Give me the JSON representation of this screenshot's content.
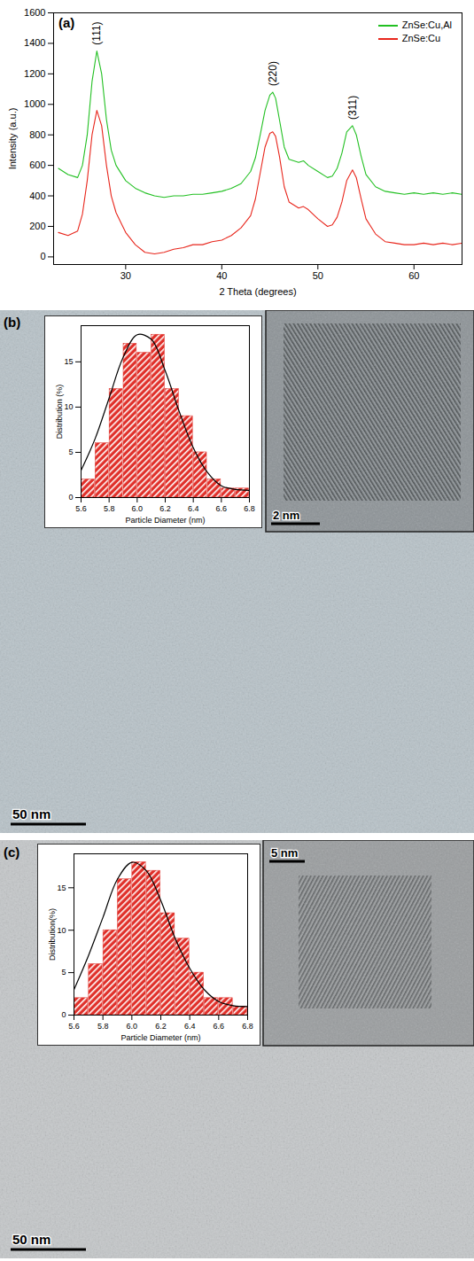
{
  "chart_data": [
    {
      "type": "line",
      "panel_label": "(a)",
      "x_label": "2 Theta (degrees)",
      "y_label": "Intensity (a.u.)",
      "x": [
        23,
        24,
        25,
        25.5,
        26,
        26.5,
        27,
        27.5,
        28,
        28.5,
        29,
        30,
        31,
        32,
        33,
        34,
        35,
        36,
        37,
        38,
        39,
        40,
        41,
        42,
        43,
        43.5,
        44,
        44.5,
        45,
        45.3,
        45.6,
        46,
        46.5,
        47,
        48,
        48.5,
        49,
        50,
        51,
        51.5,
        52,
        52.5,
        53,
        53.6,
        54,
        54.5,
        55,
        56,
        57,
        58,
        59,
        60,
        61,
        62,
        63,
        64,
        65
      ],
      "series": [
        {
          "name": "ZnSe:Cu,Al",
          "color": "#22c022",
          "values": [
            580,
            540,
            520,
            600,
            800,
            1150,
            1350,
            1200,
            900,
            700,
            600,
            500,
            450,
            420,
            400,
            390,
            400,
            400,
            410,
            410,
            420,
            430,
            450,
            480,
            560,
            650,
            800,
            960,
            1060,
            1080,
            1040,
            900,
            720,
            640,
            620,
            630,
            600,
            560,
            520,
            530,
            580,
            680,
            820,
            860,
            800,
            660,
            540,
            460,
            430,
            420,
            410,
            420,
            410,
            420,
            410,
            420,
            410
          ]
        },
        {
          "name": "ZnSe:Cu",
          "color": "#e8261c",
          "values": [
            160,
            140,
            170,
            280,
            500,
            800,
            960,
            860,
            600,
            400,
            290,
            160,
            80,
            30,
            20,
            30,
            50,
            60,
            80,
            80,
            100,
            110,
            140,
            190,
            270,
            380,
            550,
            720,
            810,
            820,
            790,
            660,
            460,
            360,
            320,
            330,
            310,
            250,
            200,
            210,
            260,
            360,
            500,
            570,
            520,
            380,
            250,
            150,
            100,
            90,
            80,
            80,
            90,
            80,
            90,
            80,
            90
          ]
        }
      ],
      "annotations": [
        {
          "text": "(111)",
          "x": 27,
          "y": 1390
        },
        {
          "text": "(220)",
          "x": 45.3,
          "y": 1120
        },
        {
          "text": "(311)",
          "x": 53.6,
          "y": 900
        }
      ],
      "xlim": [
        22.5,
        65
      ],
      "xticks": [
        30,
        40,
        50,
        60
      ],
      "ylim": [
        -50,
        1600
      ],
      "yticks": [
        0,
        200,
        400,
        600,
        800,
        1000,
        1200,
        1400,
        1600
      ],
      "legend": "top-right",
      "grid": false
    },
    {
      "type": "histogram",
      "x_label": "Particle Diameter (nm)",
      "y_label": "Distribution (%)",
      "bins": [
        5.6,
        5.7,
        5.8,
        5.9,
        6.0,
        6.1,
        6.2,
        6.3,
        6.4,
        6.5,
        6.6,
        6.7,
        6.8
      ],
      "values": [
        2,
        6,
        12,
        17,
        16,
        18,
        12,
        9,
        5,
        2,
        1,
        1
      ],
      "color": "#e0302a",
      "fit_curve": {
        "x": [
          5.6,
          5.7,
          5.8,
          5.9,
          6.0,
          6.1,
          6.2,
          6.3,
          6.4,
          6.5,
          6.6,
          6.7,
          6.8
        ],
        "values": [
          3,
          6.5,
          11,
          15.5,
          18,
          17.5,
          14,
          9.5,
          5.5,
          2.8,
          1.3,
          0.9,
          0.8
        ]
      },
      "xlim": [
        5.6,
        6.8
      ],
      "xticks": [
        5.6,
        5.8,
        {
          "value": 6,
          "label": "6.0"
        },
        6.2,
        6.4,
        6.6,
        6.8
      ],
      "ylim": [
        0,
        19
      ],
      "yticks": [
        0,
        5,
        10,
        15
      ],
      "grid": false
    },
    {
      "type": "histogram",
      "x_label": "Particle Diameter (nm)",
      "y_label": "Distribution(%)",
      "bins": [
        5.6,
        5.7,
        5.8,
        5.9,
        6.0,
        6.1,
        6.2,
        6.3,
        6.4,
        6.5,
        6.6,
        6.7,
        6.8
      ],
      "values": [
        2,
        6,
        10,
        16,
        18,
        17,
        12,
        9,
        5,
        2,
        2,
        1
      ],
      "color": "#e0302a",
      "fit_curve": {
        "x": [
          5.6,
          5.7,
          5.8,
          5.9,
          6.0,
          6.1,
          6.2,
          6.3,
          6.4,
          6.5,
          6.6,
          6.7,
          6.8
        ],
        "values": [
          3,
          7,
          11.5,
          16,
          18,
          17,
          13.5,
          9,
          5.5,
          3,
          1.6,
          1.1,
          1
        ]
      },
      "xlim": [
        5.6,
        6.8
      ],
      "xticks": [
        5.6,
        5.8,
        {
          "value": 6,
          "label": "6.0"
        },
        6.2,
        6.4,
        6.6,
        6.8
      ],
      "ylim": [
        0,
        19
      ],
      "yticks": [
        0,
        5,
        10,
        15
      ],
      "grid": false
    }
  ],
  "micrographs": [
    {
      "panel_label": "(b)",
      "scale_bar": "50 nm",
      "inset_scale_bar": "2 nm"
    },
    {
      "panel_label": "(c)",
      "scale_bar": "50 nm",
      "inset_scale_bar": "5 nm"
    }
  ]
}
